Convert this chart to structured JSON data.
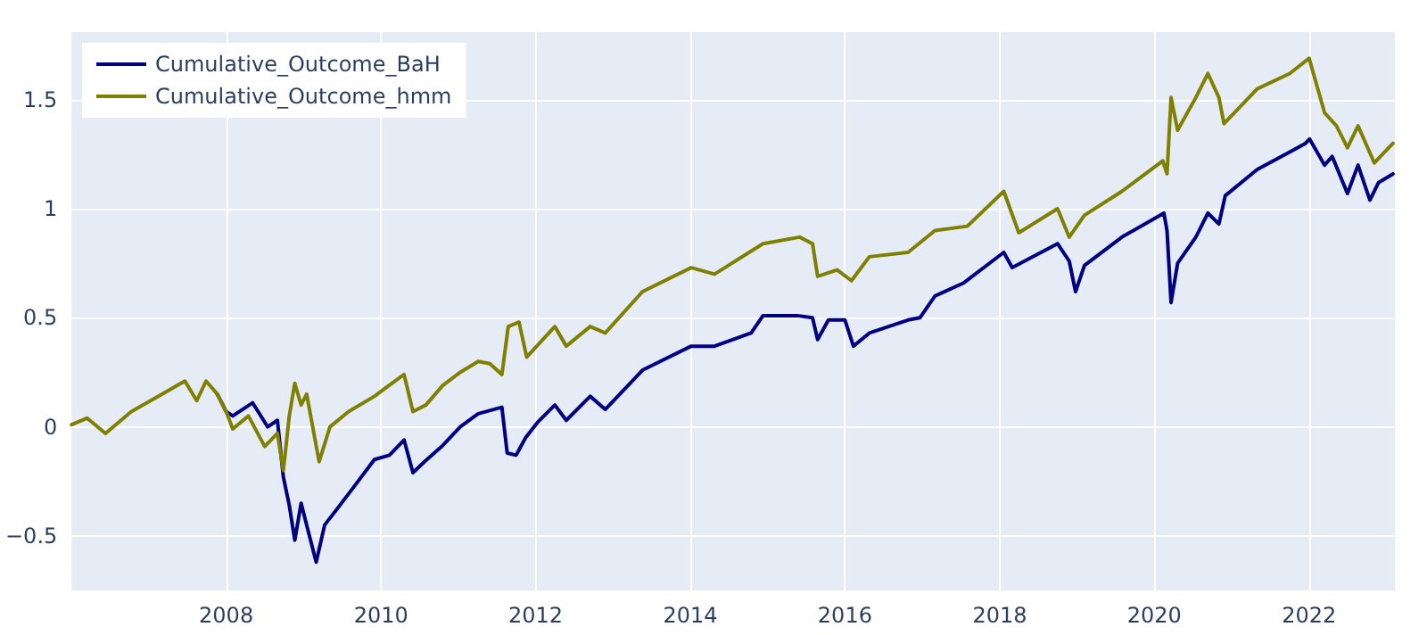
{
  "chart_data": {
    "type": "line",
    "grid": true,
    "legend": "top left",
    "marker": "none",
    "line_style": "solid",
    "xlim": [
      "2006-01-01",
      "2023-02-10"
    ],
    "xticks": [
      "2008",
      "2010",
      "2012",
      "2014",
      "2016",
      "2018",
      "2020",
      "2022"
    ],
    "ylim": [
      -0.75,
      1.81
    ],
    "yticks": [
      {
        "value": -0.5,
        "label": "−0.5"
      },
      0,
      0.5,
      1,
      1.5
    ],
    "series": [
      {
        "name": "Cumulative_Outcome_BaH",
        "color": "#000080",
        "x": [
          "2007-11-20",
          "2008-01-01",
          "2008-02-01",
          "2008-05-05",
          "2008-07-15",
          "2008-08-30",
          "2008-09-27",
          "2008-10-25",
          "2008-11-20",
          "2008-12-20",
          "2009-01-15",
          "2009-03-01",
          "2009-04-10",
          "2009-06-05",
          "2009-08-30",
          "2009-12-01",
          "2010-02-10",
          "2010-04-20",
          "2010-06-01",
          "2010-07-25",
          "2010-10-15",
          "2011-01-10",
          "2011-04-05",
          "2011-07-26",
          "2011-08-20",
          "2011-10-01",
          "2011-11-15",
          "2012-01-10",
          "2012-04-01",
          "2012-05-25",
          "2012-09-15",
          "2012-11-25",
          "2013-05-20",
          "2014-01-05",
          "2014-04-25",
          "2014-10-15",
          "2014-12-10",
          "2015-05-20",
          "2015-08-01",
          "2015-08-25",
          "2015-10-15",
          "2016-01-01",
          "2016-02-10",
          "2016-04-25",
          "2016-10-25",
          "2016-12-20",
          "2017-03-01",
          "2017-07-15",
          "2018-01-20",
          "2018-03-01",
          "2018-10-01",
          "2018-11-25",
          "2018-12-25",
          "2019-02-05",
          "2019-08-01",
          "2020-02-15",
          "2020-03-01",
          "2020-03-20",
          "2020-04-20",
          "2020-07-15",
          "2020-09-10",
          "2020-11-01",
          "2020-12-01",
          "2021-05-01",
          "2021-10-01",
          "2021-12-15",
          "2022-01-03",
          "2022-03-15",
          "2022-04-20",
          "2022-07-01",
          "2022-08-20",
          "2022-10-15",
          "2022-11-25",
          "2023-02-01"
        ],
        "values": [
          0.15,
          0.07,
          0.05,
          0.11,
          0.0,
          0.03,
          -0.23,
          -0.36,
          -0.52,
          -0.35,
          -0.45,
          -0.62,
          -0.45,
          -0.38,
          -0.27,
          -0.15,
          -0.13,
          -0.06,
          -0.21,
          -0.16,
          -0.09,
          0.0,
          0.06,
          0.09,
          -0.12,
          -0.13,
          -0.05,
          0.02,
          0.1,
          0.03,
          0.14,
          0.08,
          0.26,
          0.37,
          0.37,
          0.43,
          0.51,
          0.51,
          0.5,
          0.4,
          0.49,
          0.49,
          0.37,
          0.43,
          0.49,
          0.5,
          0.6,
          0.66,
          0.8,
          0.73,
          0.84,
          0.76,
          0.62,
          0.74,
          0.87,
          0.98,
          0.9,
          0.57,
          0.75,
          0.87,
          0.98,
          0.93,
          1.06,
          1.18,
          1.26,
          1.3,
          1.32,
          1.2,
          1.24,
          1.07,
          1.2,
          1.04,
          1.12,
          1.16
        ]
      },
      {
        "name": "Cumulative_Outcome_hmm",
        "color": "#808000",
        "x": [
          "2006-01-01",
          "2006-03-15",
          "2006-06-10",
          "2006-10-10",
          "2007-02-15",
          "2007-06-20",
          "2007-08-15",
          "2007-09-28",
          "2007-11-20",
          "2008-01-01",
          "2008-02-01",
          "2008-04-15",
          "2008-07-01",
          "2008-08-30",
          "2008-09-27",
          "2008-10-25",
          "2008-11-20",
          "2008-12-20",
          "2009-01-15",
          "2009-03-15",
          "2009-05-05",
          "2009-08-01",
          "2009-12-01",
          "2010-01-25",
          "2010-04-20",
          "2010-06-01",
          "2010-08-01",
          "2010-10-20",
          "2011-01-10",
          "2011-04-05",
          "2011-05-30",
          "2011-07-26",
          "2011-08-25",
          "2011-10-15",
          "2011-11-20",
          "2012-04-01",
          "2012-05-25",
          "2012-09-15",
          "2012-11-25",
          "2013-05-20",
          "2014-01-05",
          "2014-04-25",
          "2014-12-10",
          "2015-06-01",
          "2015-08-01",
          "2015-08-25",
          "2015-11-25",
          "2016-02-01",
          "2016-04-25",
          "2016-10-25",
          "2017-03-01",
          "2017-08-01",
          "2018-01-20",
          "2018-04-01",
          "2018-10-01",
          "2018-11-25",
          "2019-02-05",
          "2019-08-01",
          "2020-02-10",
          "2020-03-01",
          "2020-03-20",
          "2020-04-20",
          "2020-07-15",
          "2020-09-10",
          "2020-11-01",
          "2020-11-25",
          "2021-05-01",
          "2021-10-01",
          "2022-01-01",
          "2022-03-15",
          "2022-05-10",
          "2022-07-01",
          "2022-08-20",
          "2022-11-05",
          "2023-02-01"
        ],
        "values": [
          0.01,
          0.04,
          -0.03,
          0.07,
          0.14,
          0.21,
          0.12,
          0.21,
          0.15,
          0.07,
          -0.01,
          0.05,
          -0.09,
          -0.03,
          -0.2,
          0.05,
          0.2,
          0.1,
          0.15,
          -0.16,
          0.0,
          0.07,
          0.14,
          0.18,
          0.24,
          0.07,
          0.1,
          0.19,
          0.25,
          0.3,
          0.29,
          0.24,
          0.46,
          0.48,
          0.32,
          0.46,
          0.37,
          0.46,
          0.43,
          0.62,
          0.73,
          0.7,
          0.84,
          0.87,
          0.84,
          0.69,
          0.72,
          0.67,
          0.78,
          0.8,
          0.9,
          0.92,
          1.08,
          0.89,
          1.0,
          0.87,
          0.97,
          1.08,
          1.22,
          1.16,
          1.51,
          1.36,
          1.51,
          1.62,
          1.51,
          1.39,
          1.55,
          1.62,
          1.69,
          1.44,
          1.38,
          1.28,
          1.38,
          1.21,
          1.3
        ]
      }
    ]
  }
}
